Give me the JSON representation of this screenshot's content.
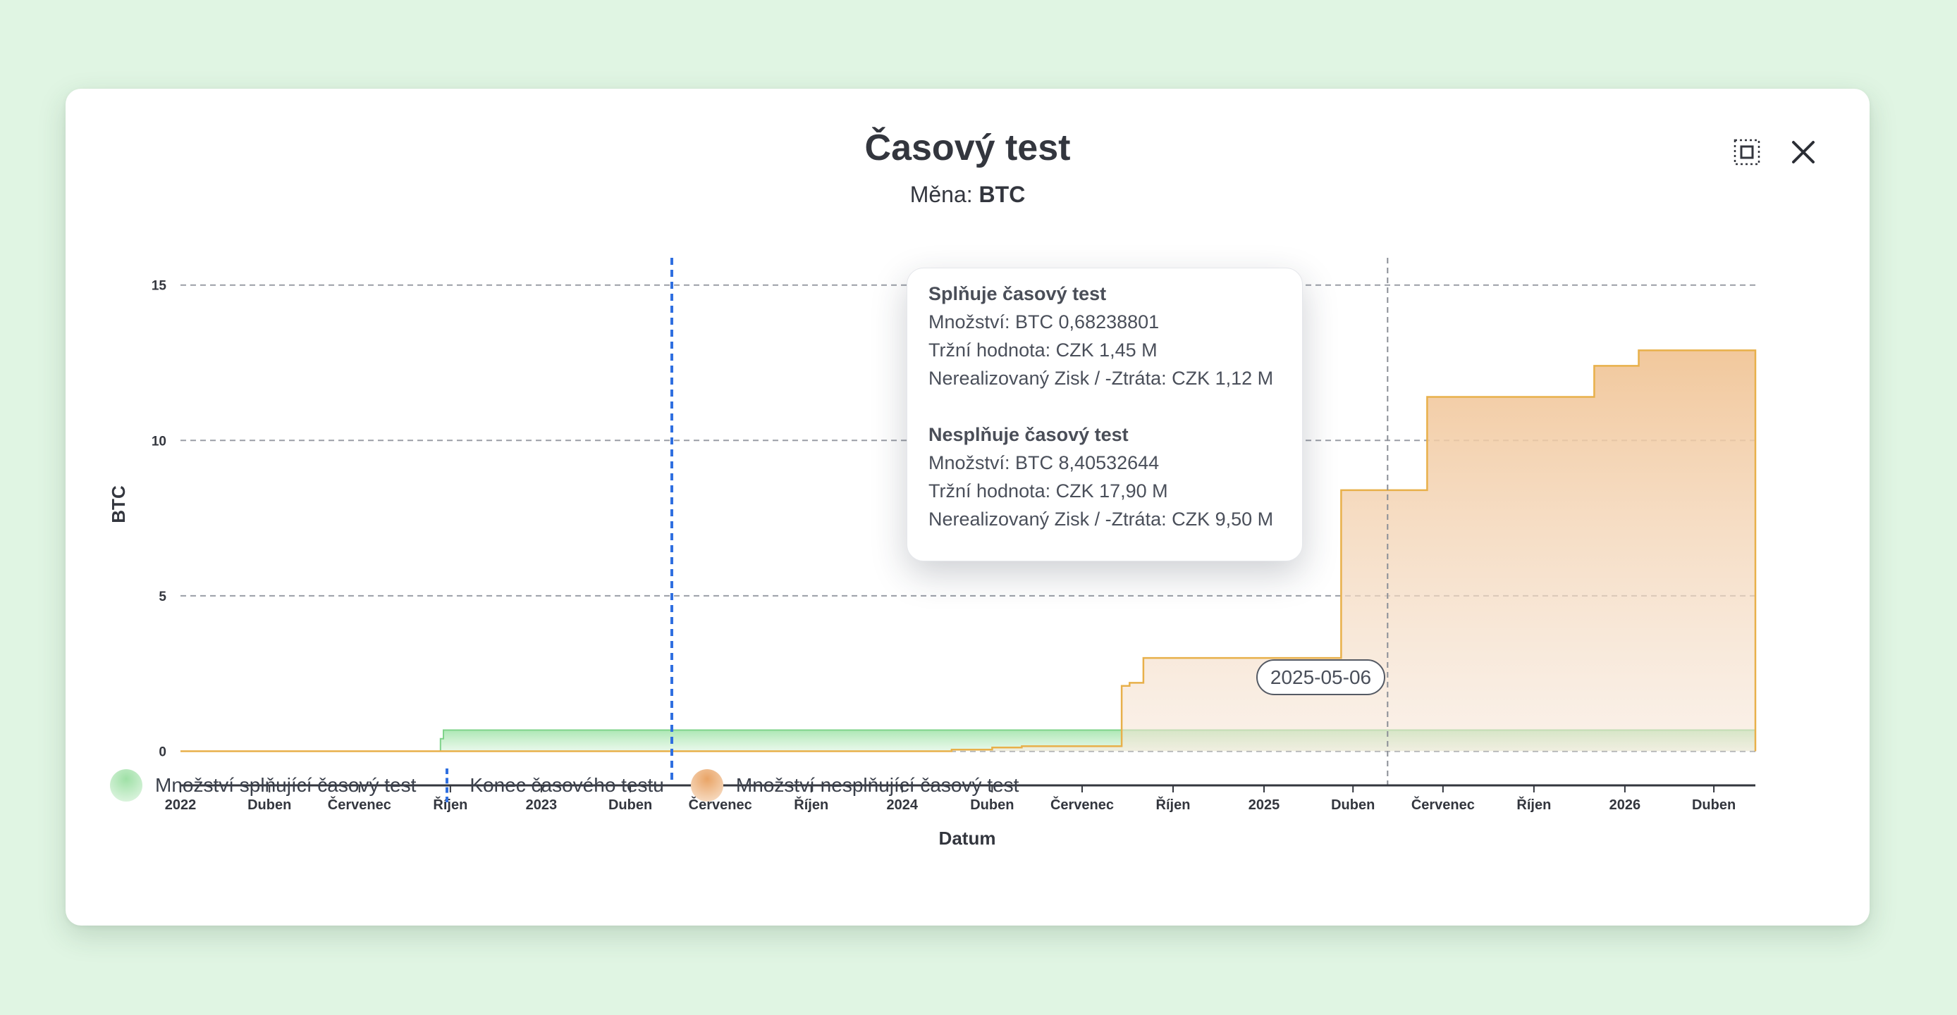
{
  "dialog": {
    "title": "Časový test",
    "subtitle_label": "Měna:",
    "subtitle_value": "BTC"
  },
  "icons": {
    "expand": "expand-icon",
    "close": "close-icon"
  },
  "colors": {
    "page_background": "#e0f5e3",
    "meets_fill": "#b8ebbf",
    "meets_line": "#7fd38a",
    "fails_fill": "#f2c79a",
    "fails_line": "#e8b04a",
    "test_end_line": "#2f6fe0"
  },
  "tooltip": {
    "meets_title": "Splňuje časový test",
    "meets_amount": "Množství: BTC 0,68238801",
    "meets_market": "Tržní hodnota: CZK 1,45 M",
    "meets_pnl": "Nerealizovaný Zisk / -Ztráta: CZK 1,12 M",
    "fails_title": "Nesplňuje časový test",
    "fails_amount": "Množství: BTC 8,40532644",
    "fails_market": "Tržní hodnota: CZK 17,90 M",
    "fails_pnl": "Nerealizovaný Zisk / -Ztráta: CZK 9,50 M"
  },
  "crosshair_date": "2025-05-06",
  "legend": {
    "meets": "Množství splňující časový test",
    "end": "Konec časového testu",
    "fails": "Množství nesplňující časový test"
  },
  "chart_data": {
    "type": "area",
    "xlabel": "Datum",
    "ylabel": "BTC",
    "ylim": [
      -1.1,
      15.9
    ],
    "y_ticks": [
      0,
      5,
      10,
      15
    ],
    "x_ticks": [
      {
        "label": "2022",
        "date": "2022-01-01"
      },
      {
        "label": "Duben",
        "date": "2022-04-01"
      },
      {
        "label": "Červenec",
        "date": "2022-07-01"
      },
      {
        "label": "Říjen",
        "date": "2022-10-01"
      },
      {
        "label": "2023",
        "date": "2023-01-01"
      },
      {
        "label": "Duben",
        "date": "2023-04-01"
      },
      {
        "label": "Červenec",
        "date": "2023-07-01"
      },
      {
        "label": "Říjen",
        "date": "2023-10-01"
      },
      {
        "label": "2024",
        "date": "2024-01-01"
      },
      {
        "label": "Duben",
        "date": "2024-04-01"
      },
      {
        "label": "Červenec",
        "date": "2024-07-01"
      },
      {
        "label": "Říjen",
        "date": "2024-10-01"
      },
      {
        "label": "2025",
        "date": "2025-01-01"
      },
      {
        "label": "Duben",
        "date": "2025-04-01"
      },
      {
        "label": "Červenec",
        "date": "2025-07-01"
      },
      {
        "label": "Říjen",
        "date": "2025-10-01"
      },
      {
        "label": "2026",
        "date": "2026-01-01"
      },
      {
        "label": "Duben",
        "date": "2026-04-01"
      }
    ],
    "x_range": [
      "2022-01-01",
      "2026-05-13"
    ],
    "grid": true,
    "legend_position": "bottom-left",
    "test_end_date": "2023-05-13",
    "series": [
      {
        "name": "Množství splňující časový test",
        "points": [
          [
            "2022-01-01",
            0
          ],
          [
            "2022-09-21",
            0
          ],
          [
            "2022-09-21",
            0.4
          ],
          [
            "2022-09-24",
            0.4
          ],
          [
            "2022-09-24",
            0.68
          ],
          [
            "2026-05-13",
            0.68
          ]
        ]
      },
      {
        "name": "Množství nesplňující časový test",
        "points": [
          [
            "2022-01-01",
            0
          ],
          [
            "2024-02-20",
            0
          ],
          [
            "2024-02-20",
            0.05
          ],
          [
            "2024-04-01",
            0.05
          ],
          [
            "2024-04-01",
            0.12
          ],
          [
            "2024-05-01",
            0.12
          ],
          [
            "2024-05-01",
            0.16
          ],
          [
            "2024-08-10",
            0.16
          ],
          [
            "2024-08-10",
            2.1
          ],
          [
            "2024-08-18",
            2.1
          ],
          [
            "2024-08-18",
            2.2
          ],
          [
            "2024-09-01",
            2.2
          ],
          [
            "2024-09-01",
            3.0
          ],
          [
            "2025-03-20",
            3.0
          ],
          [
            "2025-03-20",
            8.4
          ],
          [
            "2025-06-15",
            8.4
          ],
          [
            "2025-06-15",
            11.4
          ],
          [
            "2025-12-01",
            11.4
          ],
          [
            "2025-12-01",
            12.4
          ],
          [
            "2026-01-15",
            12.4
          ],
          [
            "2026-01-15",
            12.9
          ],
          [
            "2026-05-13",
            12.9
          ],
          [
            "2026-05-13",
            0
          ]
        ]
      }
    ]
  }
}
